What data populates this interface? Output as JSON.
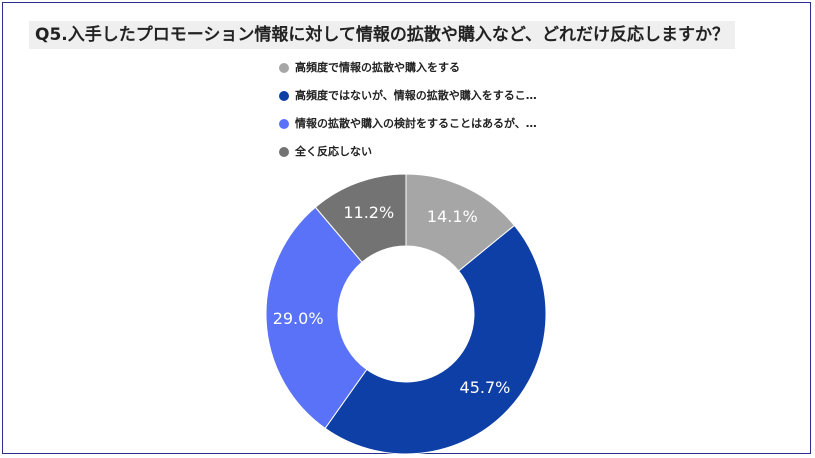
{
  "chart_data": {
    "type": "pie",
    "donut": true,
    "title": "Q5.入手したプロモーション情報に対して情報の拡散や購入など、どれだけ反応しますか？",
    "legend_position": "top",
    "series": [
      {
        "name": "高頻度で情報の拡散や購入をする",
        "value": 14.1,
        "label": "14.1%",
        "color": "#a6a6a6"
      },
      {
        "name": "高頻度ではないが、情報の拡散や購入をするこ…",
        "value": 45.7,
        "label": "45.7%",
        "color": "#0e3fa6"
      },
      {
        "name": "情報の拡散や購入の検討をすることはあるが、…",
        "value": 29.0,
        "label": "29.0%",
        "color": "#5a72f7"
      },
      {
        "name": "全く反応しない",
        "value": 11.2,
        "label": "11.2%",
        "color": "#737373"
      }
    ]
  }
}
